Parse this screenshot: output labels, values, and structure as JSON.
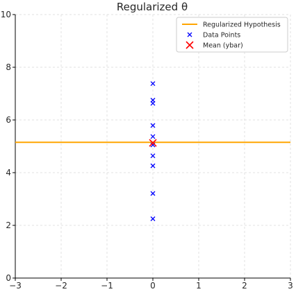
{
  "chart_data": {
    "type": "scatter",
    "title": "Regularized θ",
    "xlabel": "",
    "ylabel": "",
    "xlim": [
      -3,
      3
    ],
    "ylim": [
      0,
      10
    ],
    "x_ticks": [
      -3,
      -2,
      -1,
      0,
      1,
      2,
      3
    ],
    "y_ticks": [
      0,
      2,
      4,
      6,
      8,
      10
    ],
    "x_tick_labels": [
      "−3",
      "−2",
      "−1",
      "0",
      "1",
      "2",
      "3"
    ],
    "y_tick_labels": [
      "0",
      "2",
      "4",
      "6",
      "8",
      "10"
    ],
    "grid": true,
    "legend_position": "top-right",
    "series": [
      {
        "name": "Regularized Hypothesis",
        "kind": "line",
        "color": "#FFA500",
        "y": 5.15
      },
      {
        "name": "Data Points",
        "kind": "scatter",
        "marker": "x",
        "color": "#0000FF",
        "points": [
          [
            0,
            7.38
          ],
          [
            0,
            6.75
          ],
          [
            0,
            6.63
          ],
          [
            0,
            5.79
          ],
          [
            0,
            5.37
          ],
          [
            0,
            5.05
          ],
          [
            0,
            4.64
          ],
          [
            0,
            4.26
          ],
          [
            0,
            3.21
          ],
          [
            0,
            2.25
          ]
        ]
      },
      {
        "name": "Mean (ybar)",
        "kind": "scatter",
        "marker": "x",
        "color": "#FF0000",
        "points": [
          [
            0,
            5.13
          ]
        ]
      }
    ]
  }
}
